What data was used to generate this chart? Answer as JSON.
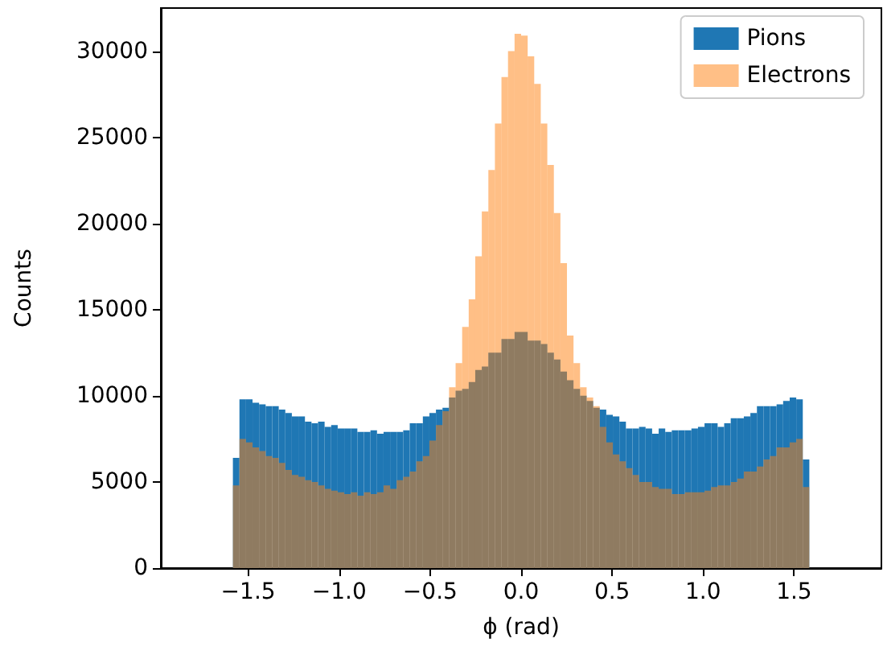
{
  "chart_data": {
    "type": "histogram",
    "xlabel": "ϕ (rad)",
    "ylabel": "Counts",
    "bins": [
      -1.8,
      -1.764,
      -1.728,
      -1.692,
      -1.656,
      -1.62,
      -1.584,
      -1.548,
      -1.512,
      -1.476,
      -1.44,
      -1.404,
      -1.368,
      -1.332,
      -1.296,
      -1.26,
      -1.224,
      -1.188,
      -1.152,
      -1.116,
      -1.08,
      -1.044,
      -1.008,
      -0.972,
      -0.936,
      -0.9,
      -0.864,
      -0.828,
      -0.792,
      -0.756,
      -0.72,
      -0.684,
      -0.648,
      -0.612,
      -0.576,
      -0.54,
      -0.504,
      -0.468,
      -0.432,
      -0.396,
      -0.36,
      -0.324,
      -0.288,
      -0.252,
      -0.216,
      -0.18,
      -0.144,
      -0.108,
      -0.072,
      -0.036,
      0,
      0.036,
      0.072,
      0.108,
      0.144,
      0.18,
      0.216,
      0.252,
      0.288,
      0.324,
      0.36,
      0.396,
      0.432,
      0.468,
      0.504,
      0.54,
      0.576,
      0.612,
      0.648,
      0.684,
      0.72,
      0.756,
      0.792,
      0.828,
      0.864,
      0.9,
      0.936,
      0.972,
      1.008,
      1.044,
      1.08,
      1.116,
      1.152,
      1.188,
      1.224,
      1.26,
      1.296,
      1.332,
      1.368,
      1.404,
      1.44,
      1.476,
      1.512,
      1.548,
      1.584,
      1.62,
      1.656,
      1.692,
      1.728,
      1.764,
      1.8
    ],
    "series": [
      {
        "name": "Pions",
        "color": "#1f77b4",
        "values": [
          0,
          0,
          0,
          0,
          0,
          0,
          6400,
          9800,
          9800,
          9600,
          9500,
          9400,
          9400,
          9200,
          9000,
          8800,
          8800,
          8500,
          8400,
          8500,
          8200,
          8300,
          8100,
          8100,
          8100,
          7900,
          7900,
          8000,
          7800,
          7900,
          7900,
          7900,
          8000,
          8400,
          8400,
          8800,
          9000,
          9200,
          9300,
          9900,
          10300,
          10400,
          10800,
          11500,
          11700,
          12500,
          12500,
          13300,
          13300,
          13700,
          13700,
          13200,
          13200,
          13000,
          12500,
          12100,
          11400,
          10900,
          10400,
          10000,
          9700,
          9300,
          9200,
          8900,
          8800,
          8500,
          8100,
          8100,
          8200,
          8100,
          7800,
          8100,
          7900,
          8000,
          8000,
          8000,
          8100,
          8200,
          8400,
          8400,
          8200,
          8400,
          8700,
          8700,
          8800,
          9000,
          9400,
          9400,
          9400,
          9500,
          9700,
          9900,
          9800,
          6300,
          0,
          0,
          0,
          0,
          0,
          0
        ]
      },
      {
        "name": "Electrons",
        "color": "#ff7f0e",
        "values": [
          0,
          0,
          0,
          0,
          0,
          0,
          4800,
          7500,
          7300,
          7000,
          6800,
          6500,
          6400,
          6100,
          5700,
          5400,
          5300,
          5100,
          5000,
          4800,
          4600,
          4500,
          4400,
          4300,
          4400,
          4200,
          4400,
          4300,
          4400,
          4800,
          4600,
          5100,
          5300,
          5600,
          6200,
          6500,
          7400,
          8300,
          9100,
          10500,
          11900,
          14000,
          15600,
          18100,
          20700,
          23100,
          25800,
          28500,
          30000,
          31000,
          30900,
          29700,
          28100,
          25800,
          23400,
          20600,
          17700,
          13500,
          11900,
          10500,
          9900,
          9400,
          8200,
          7300,
          6600,
          6200,
          5800,
          5400,
          5000,
          5000,
          4700,
          4600,
          4600,
          4300,
          4300,
          4400,
          4400,
          4400,
          4500,
          4700,
          4800,
          4800,
          5000,
          5200,
          5600,
          5600,
          5900,
          6300,
          6500,
          7000,
          7000,
          7300,
          7500,
          4700,
          0,
          0,
          0,
          0,
          0,
          0
        ]
      }
    ],
    "xlim": [
      -1.98,
      1.98
    ],
    "xticks": [
      {
        "value": -1.5,
        "label": "−1.5"
      },
      {
        "value": -1,
        "label": "−1.0"
      },
      {
        "value": -0.5,
        "label": "−0.5"
      },
      {
        "value": 0,
        "label": "0.0"
      },
      {
        "value": 0.5,
        "label": "0.5"
      },
      {
        "value": 1,
        "label": "1.0"
      },
      {
        "value": 1.5,
        "label": "1.5"
      }
    ],
    "ylim": [
      0,
      32500
    ],
    "yticks": [
      0,
      5000,
      10000,
      15000,
      20000,
      25000,
      30000
    ],
    "grid": false,
    "legend": "top right"
  }
}
